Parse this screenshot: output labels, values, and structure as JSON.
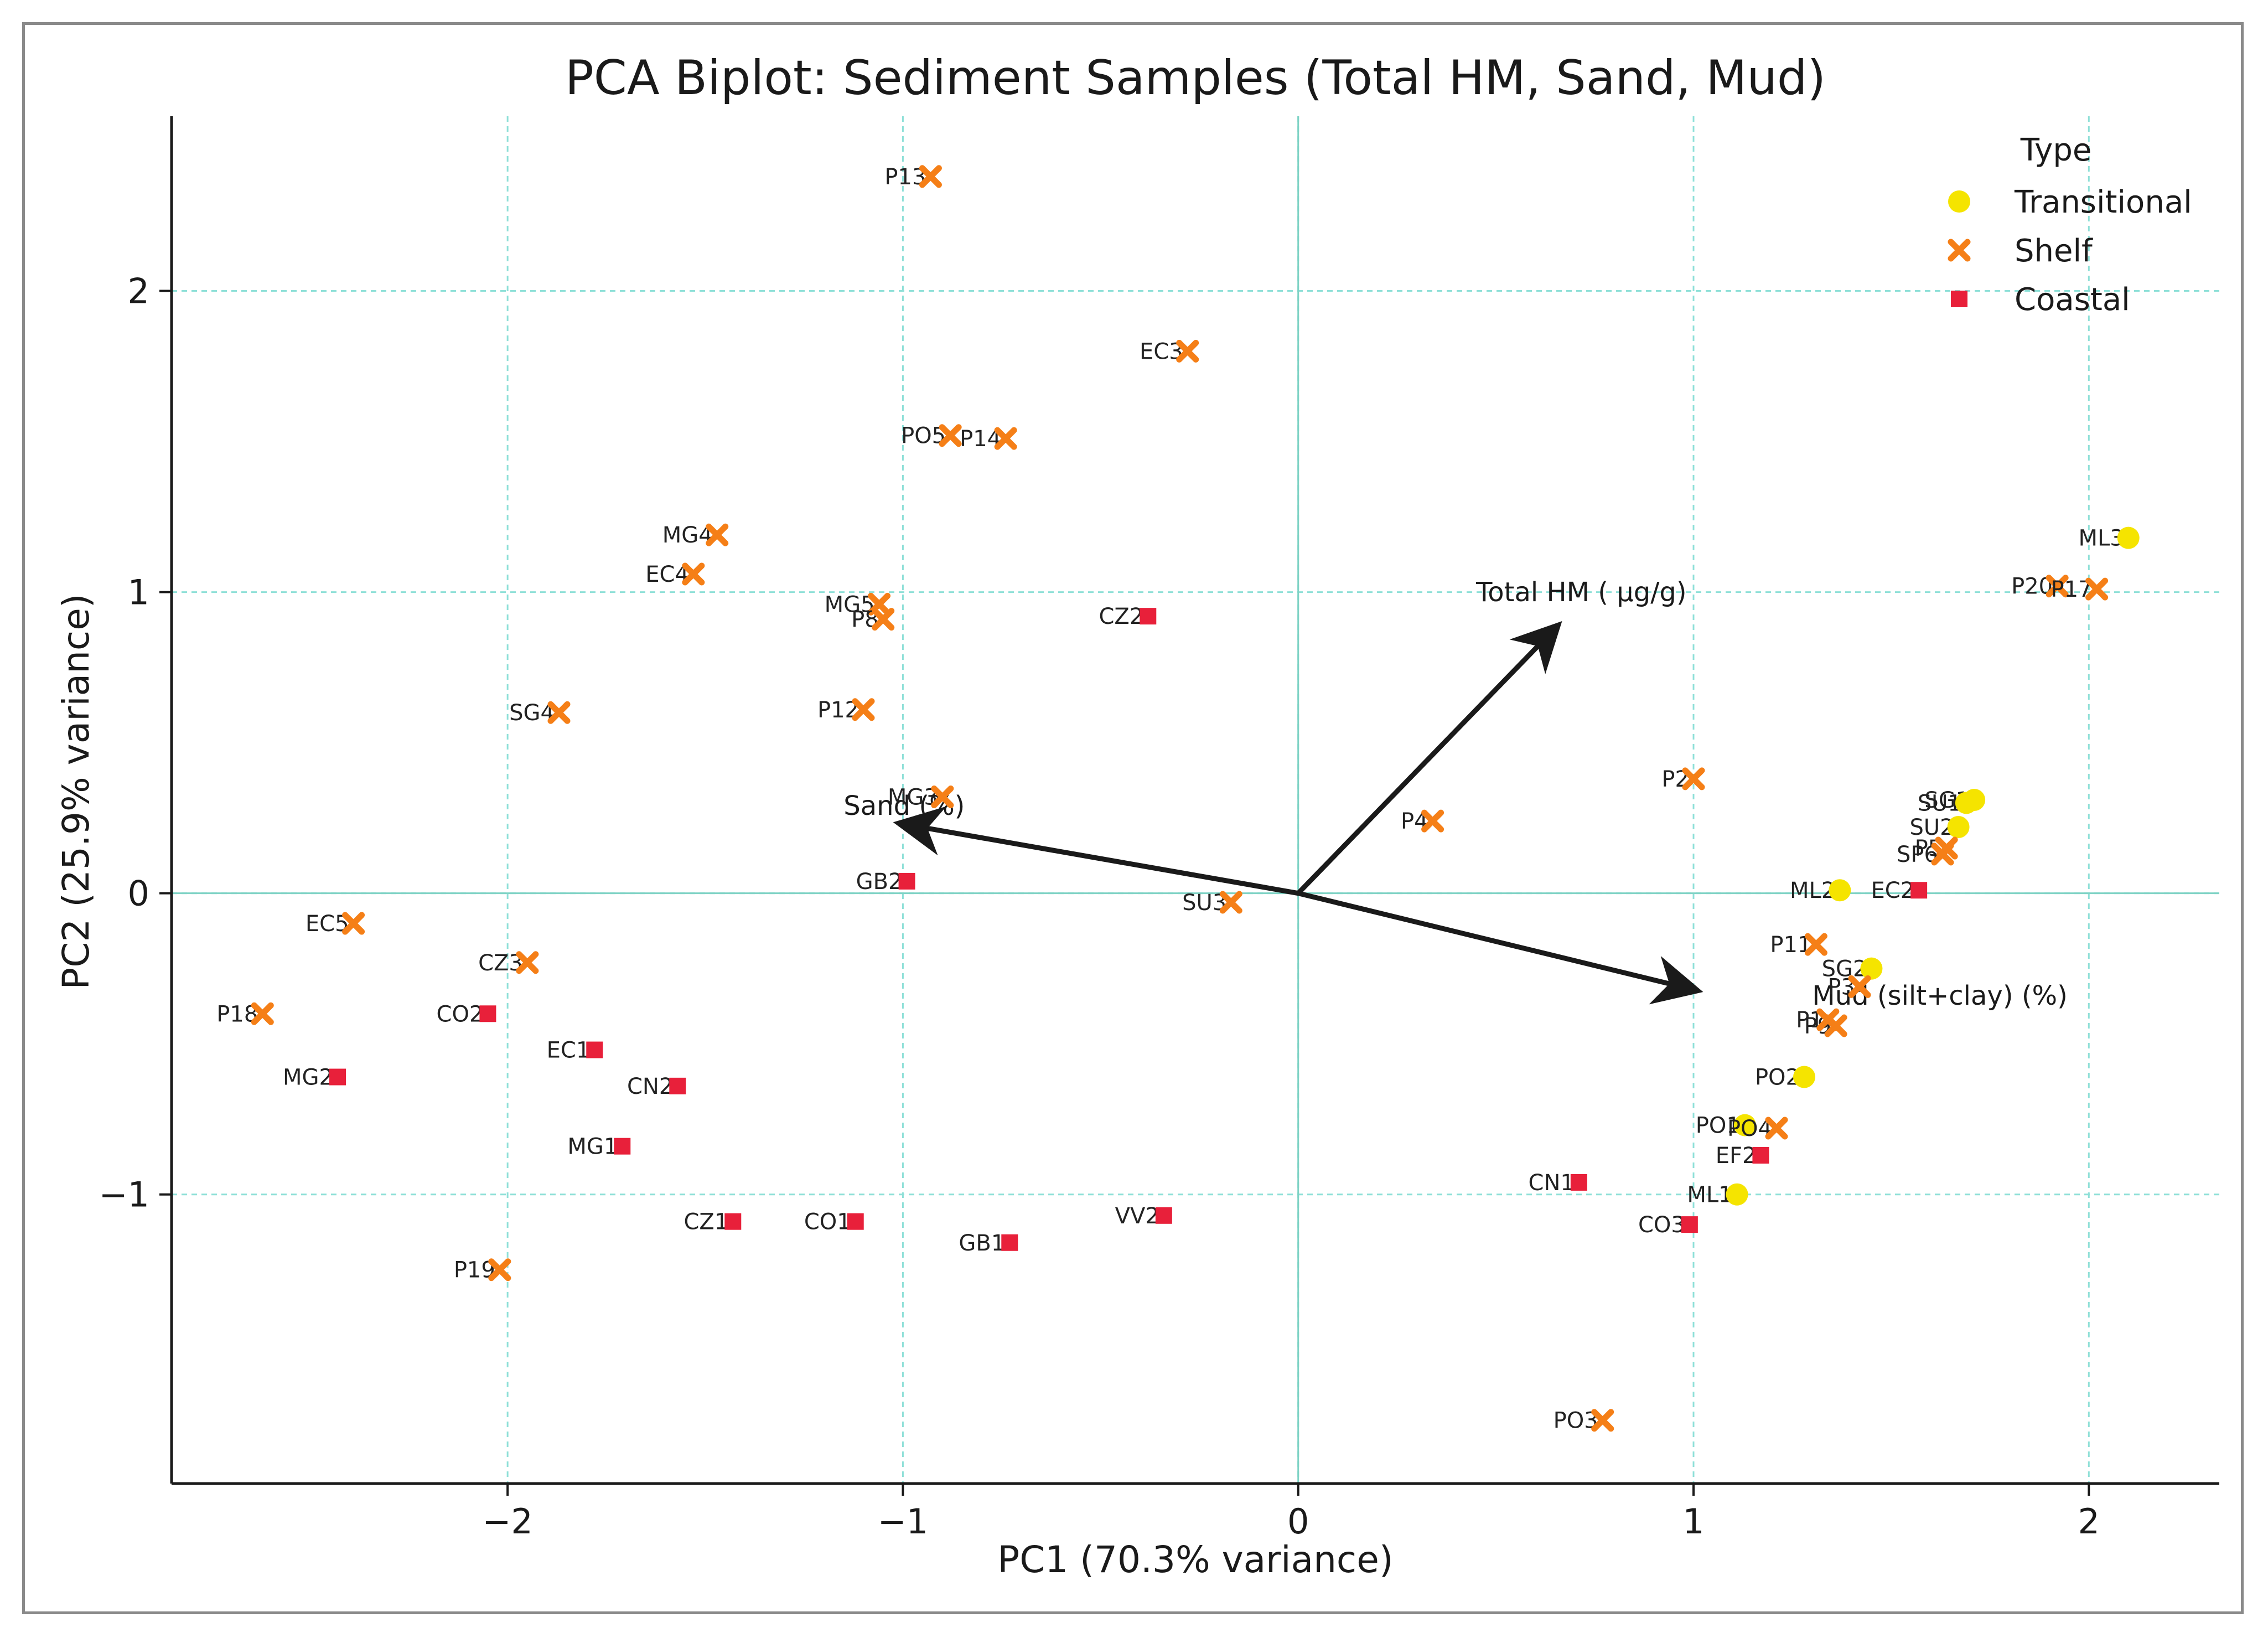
{
  "chart_data": {
    "type": "scatter",
    "title": "PCA Biplot: Sediment Samples (Total HM, Sand, Mud)",
    "xlabel": "PC1 (70.3% variance)",
    "ylabel": "PC2 (25.9% variance)",
    "xlim": [
      -2.85,
      2.33
    ],
    "ylim": [
      -1.96,
      2.58
    ],
    "xticks": [
      -2,
      -1,
      0,
      1,
      2
    ],
    "yticks": [
      -1,
      0,
      1,
      2
    ],
    "xtick_labels": [
      "−2",
      "−1",
      "0",
      "1",
      "2"
    ],
    "ytick_labels": [
      "−1",
      "0",
      "1",
      "2"
    ],
    "grid": "dashed at ticks",
    "legend": {
      "title": "Type",
      "position": "top-right",
      "entries": [
        {
          "label": "Transitional",
          "marker": "circle",
          "color": "#f5e400"
        },
        {
          "label": "Shelf",
          "marker": "x",
          "color": "#f57f17"
        },
        {
          "label": "Coastal",
          "marker": "square",
          "color": "#e8203a"
        }
      ]
    },
    "colors": {
      "Transitional": "#f5e400",
      "Shelf": "#f57f17",
      "Coastal": "#e8203a",
      "grid": "#8fe0d8",
      "axis_line": "#7fd3c5",
      "arrow": "#1a1a1a"
    },
    "loadings": [
      {
        "label": "Total HM ( µg/g)",
        "x": 0.65,
        "y": 0.88,
        "text": [
          0.45,
          0.97
        ]
      },
      {
        "label": "Sand (%)",
        "x": -1.0,
        "y": 0.23,
        "text": [
          -1.15,
          0.26
        ]
      },
      {
        "label": "Mud (silt+clay) (%)",
        "x": 1.0,
        "y": -0.32,
        "text": [
          1.3,
          -0.37
        ]
      }
    ],
    "points": [
      {
        "label": "P13",
        "group": "Shelf",
        "x": -0.93,
        "y": 2.38
      },
      {
        "label": "EC3",
        "group": "Shelf",
        "x": -0.28,
        "y": 1.8
      },
      {
        "label": "PO5",
        "group": "Shelf",
        "x": -0.88,
        "y": 1.52
      },
      {
        "label": "P14",
        "group": "Shelf",
        "x": -0.74,
        "y": 1.51
      },
      {
        "label": "MG4",
        "group": "Shelf",
        "x": -1.47,
        "y": 1.19
      },
      {
        "label": "EC4",
        "group": "Shelf",
        "x": -1.53,
        "y": 1.06
      },
      {
        "label": "MG5",
        "group": "Shelf",
        "x": -1.06,
        "y": 0.96
      },
      {
        "label": "P8",
        "group": "Shelf",
        "x": -1.05,
        "y": 0.91
      },
      {
        "label": "CZ2",
        "group": "Coastal",
        "x": -0.38,
        "y": 0.92
      },
      {
        "label": "SG4",
        "group": "Shelf",
        "x": -1.87,
        "y": 0.6
      },
      {
        "label": "P12",
        "group": "Shelf",
        "x": -1.1,
        "y": 0.61
      },
      {
        "label": "MG3",
        "group": "Shelf",
        "x": -0.9,
        "y": 0.32
      },
      {
        "label": "GB2",
        "group": "Coastal",
        "x": -0.99,
        "y": 0.04
      },
      {
        "label": "SU3",
        "group": "Shelf",
        "x": -0.17,
        "y": -0.03
      },
      {
        "label": "P4",
        "group": "Shelf",
        "x": 0.34,
        "y": 0.24
      },
      {
        "label": "P2",
        "group": "Shelf",
        "x": 1.0,
        "y": 0.38
      },
      {
        "label": "EC5",
        "group": "Shelf",
        "x": -2.39,
        "y": -0.1
      },
      {
        "label": "CZ3",
        "group": "Shelf",
        "x": -1.95,
        "y": -0.23
      },
      {
        "label": "P18",
        "group": "Shelf",
        "x": -2.62,
        "y": -0.4
      },
      {
        "label": "CO2",
        "group": "Coastal",
        "x": -2.05,
        "y": -0.4
      },
      {
        "label": "EC1",
        "group": "Coastal",
        "x": -1.78,
        "y": -0.52
      },
      {
        "label": "MG2",
        "group": "Coastal",
        "x": -2.43,
        "y": -0.61
      },
      {
        "label": "CN2",
        "group": "Coastal",
        "x": -1.57,
        "y": -0.64
      },
      {
        "label": "MG1",
        "group": "Coastal",
        "x": -1.71,
        "y": -0.84
      },
      {
        "label": "CZ1",
        "group": "Coastal",
        "x": -1.43,
        "y": -1.09
      },
      {
        "label": "CO1",
        "group": "Coastal",
        "x": -1.12,
        "y": -1.09
      },
      {
        "label": "VV2",
        "group": "Coastal",
        "x": -0.34,
        "y": -1.07
      },
      {
        "label": "GB1",
        "group": "Coastal",
        "x": -0.73,
        "y": -1.16
      },
      {
        "label": "P19",
        "group": "Shelf",
        "x": -2.02,
        "y": -1.25
      },
      {
        "label": "PO3",
        "group": "Shelf",
        "x": 0.77,
        "y": -1.75
      },
      {
        "label": "ML3",
        "group": "Transitional",
        "x": 2.1,
        "y": 1.18
      },
      {
        "label": "P20",
        "group": "Shelf",
        "x": 1.92,
        "y": 1.02
      },
      {
        "label": "P17",
        "group": "Shelf",
        "x": 2.02,
        "y": 1.01
      },
      {
        "label": "SG1",
        "group": "Transitional",
        "x": 1.71,
        "y": 0.31
      },
      {
        "label": "SU1",
        "group": "Transitional",
        "x": 1.69,
        "y": 0.3
      },
      {
        "label": "SU2",
        "group": "Transitional",
        "x": 1.67,
        "y": 0.22
      },
      {
        "label": "P5",
        "group": "Shelf",
        "x": 1.64,
        "y": 0.15
      },
      {
        "label": "SP6",
        "group": "Shelf",
        "x": 1.63,
        "y": 0.13
      },
      {
        "label": "ML2",
        "group": "Transitional",
        "x": 1.37,
        "y": 0.01
      },
      {
        "label": "EC2",
        "group": "Coastal",
        "x": 1.57,
        "y": 0.01
      },
      {
        "label": "P11",
        "group": "Shelf",
        "x": 1.31,
        "y": -0.17
      },
      {
        "label": "SG2",
        "group": "Transitional",
        "x": 1.45,
        "y": -0.25
      },
      {
        "label": "P3",
        "group": "Shelf",
        "x": 1.42,
        "y": -0.31
      },
      {
        "label": "P9",
        "group": "Shelf",
        "x": 1.36,
        "y": -0.44
      },
      {
        "label": "P1",
        "group": "Shelf",
        "x": 1.34,
        "y": -0.42
      },
      {
        "label": "PO2",
        "group": "Transitional",
        "x": 1.28,
        "y": -0.61
      },
      {
        "label": "PO1",
        "group": "Transitional",
        "x": 1.13,
        "y": -0.77
      },
      {
        "label": "PO4",
        "group": "Shelf",
        "x": 1.21,
        "y": -0.78
      },
      {
        "label": "EF2",
        "group": "Coastal",
        "x": 1.17,
        "y": -0.87
      },
      {
        "label": "CN1",
        "group": "Coastal",
        "x": 0.71,
        "y": -0.96
      },
      {
        "label": "ML1",
        "group": "Transitional",
        "x": 1.11,
        "y": -1.0
      },
      {
        "label": "CO3",
        "group": "Coastal",
        "x": 0.99,
        "y": -1.1
      }
    ]
  }
}
